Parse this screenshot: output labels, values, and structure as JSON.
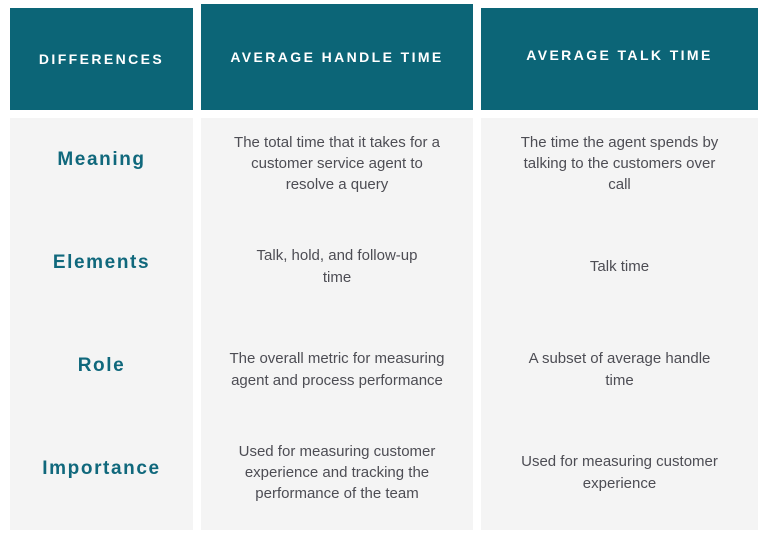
{
  "colors": {
    "header_teal": "#0c6577",
    "label_teal": "#10687c",
    "body_gray": "#f4f4f4",
    "text_gray": "#4d4d54",
    "page_background": "#ffffff"
  },
  "table": {
    "headers": [
      {
        "label": "DIFFERENCES"
      },
      {
        "label": "AVERAGE HANDLE TIME"
      },
      {
        "label": "AVERAGE TALK TIME"
      }
    ],
    "rows": [
      {
        "label": "Meaning",
        "handle_time": "The total time that it takes for a\ncustomer service agent to\nresolve a query",
        "talk_time": "The time the agent spends by\ntalking to the customers over\ncall"
      },
      {
        "label": "Elements",
        "handle_time": "Talk, hold, and follow-up\ntime",
        "talk_time": "Talk time"
      },
      {
        "label": "Role",
        "handle_time": "The overall metric for measuring\nagent and process performance",
        "talk_time": "A subset of average handle\ntime"
      },
      {
        "label": "Importance",
        "handle_time": "Used for measuring customer\nexperience and tracking the\nperformance of the team",
        "talk_time": "Used for measuring customer\nexperience"
      }
    ]
  }
}
